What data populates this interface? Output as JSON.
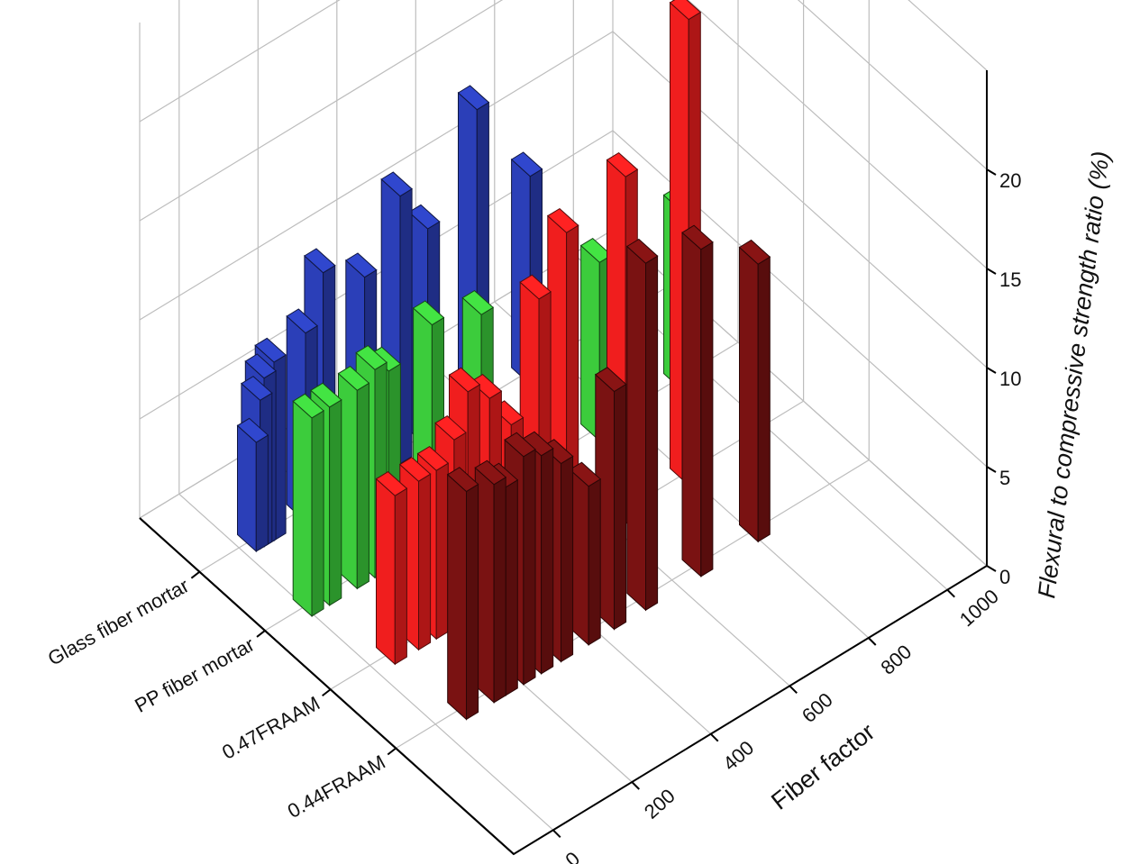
{
  "chart_data": {
    "type": "bar3d",
    "series": [
      {
        "name": "Glass fiber mortar",
        "color": "#2b3fb8",
        "x": [
          35,
          45,
          55,
          80,
          160,
          205,
          310,
          400,
          470,
          595,
          730
        ],
        "values": [
          5.5,
          7.5,
          8.5,
          9,
          9.5,
          12,
          10.5,
          13.5,
          11,
          15.5,
          10.5
        ]
      },
      {
        "name": "PP fiber mortar",
        "color": "#3ccc3c",
        "x": [
          10,
          55,
          125,
          170,
          205,
          315,
          440,
          740,
          950
        ],
        "values": [
          10,
          10,
          10,
          10.5,
          10,
          11,
          10,
          9,
          9
        ]
      },
      {
        "name": "0.47FRAAM",
        "color": "#f01e1e",
        "x": [
          55,
          115,
          160,
          205,
          240,
          295,
          350,
          420,
          490,
          640,
          800
        ],
        "values": [
          8.5,
          8.5,
          8.5,
          9.5,
          11.5,
          10.5,
          8.5,
          14,
          16.5,
          17.5,
          23.5
        ]
      },
      {
        "name": "0.44FRAAM",
        "color": "#7a1212",
        "x": [
          70,
          140,
          170,
          215,
          260,
          310,
          380,
          445,
          525,
          665,
          810
        ],
        "values": [
          11.5,
          11,
          10.5,
          11.5,
          11,
          10,
          8,
          12,
          17.5,
          16.5,
          14
        ]
      }
    ],
    "xlabel": "Fiber factor",
    "zlabel": "Flexural to compressive strength ratio (%)",
    "xlim": [
      -100,
      1100
    ],
    "xticks": [
      0,
      200,
      400,
      600,
      800,
      1000
    ],
    "zlim": [
      0,
      25
    ],
    "zticks": [
      0,
      5,
      10,
      15,
      20
    ],
    "grid": true
  }
}
